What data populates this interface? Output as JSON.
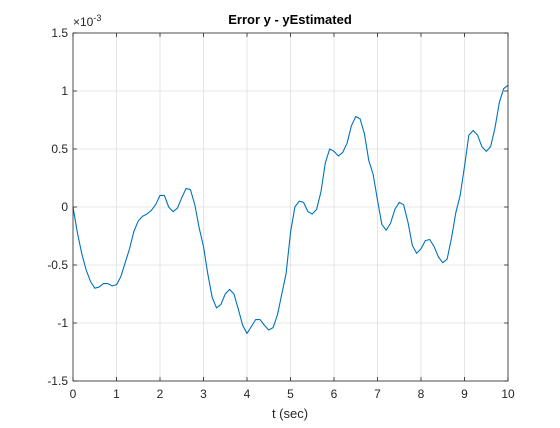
{
  "chart_data": {
    "type": "line",
    "title": "Error y - yEstimated",
    "xlabel": "t (sec)",
    "ylabel": "",
    "xlim": [
      0,
      10
    ],
    "ylim": [
      -0.0015,
      0.0015
    ],
    "y_exponent_label": "×10",
    "y_exponent_value": "-3",
    "xticks": [
      0,
      1,
      2,
      3,
      4,
      5,
      6,
      7,
      8,
      9,
      10
    ],
    "xtick_labels": [
      "0",
      "1",
      "2",
      "3",
      "4",
      "5",
      "6",
      "7",
      "8",
      "9",
      "10"
    ],
    "yticks": [
      -1.5,
      -1,
      -0.5,
      0,
      0.5,
      1,
      1.5
    ],
    "ytick_labels": [
      "-1.5",
      "-1",
      "-0.5",
      "0",
      "0.5",
      "1",
      "1.5"
    ],
    "y_tick_scale": 0.001,
    "grid": true,
    "series": [
      {
        "color": "#0072BD",
        "x": [
          0,
          0.1,
          0.2,
          0.3,
          0.4,
          0.5,
          0.6,
          0.7,
          0.8,
          0.9,
          1.0,
          1.1,
          1.2,
          1.3,
          1.4,
          1.5,
          1.6,
          1.7,
          1.8,
          1.9,
          2.0,
          2.1,
          2.2,
          2.3,
          2.4,
          2.5,
          2.6,
          2.7,
          2.8,
          2.9,
          3.0,
          3.1,
          3.2,
          3.3,
          3.4,
          3.5,
          3.6,
          3.7,
          3.8,
          3.9,
          4.0,
          4.1,
          4.2,
          4.3,
          4.4,
          4.5,
          4.6,
          4.7,
          4.8,
          4.9,
          5.0,
          5.1,
          5.2,
          5.3,
          5.4,
          5.5,
          5.6,
          5.7,
          5.8,
          5.9,
          6.0,
          6.1,
          6.2,
          6.3,
          6.4,
          6.5,
          6.6,
          6.7,
          6.8,
          6.9,
          7.0,
          7.1,
          7.2,
          7.3,
          7.4,
          7.5,
          7.6,
          7.7,
          7.8,
          7.9,
          8.0,
          8.1,
          8.2,
          8.3,
          8.4,
          8.5,
          8.6,
          8.7,
          8.8,
          8.9,
          9.0,
          9.1,
          9.2,
          9.3,
          9.4,
          9.5,
          9.6,
          9.7,
          9.8,
          9.9,
          10.0
        ],
        "y": [
          0.0,
          -0.00022,
          -0.0004,
          -0.00054,
          -0.00064,
          -0.0007,
          -0.00069,
          -0.00066,
          -0.00066,
          -0.00068,
          -0.00067,
          -0.0006,
          -0.00048,
          -0.00036,
          -0.00021,
          -0.00012,
          -8e-05,
          -6e-05,
          -3e-05,
          2e-05,
          0.0001,
          0.0001,
          0.0,
          -4e-05,
          -1e-05,
          8e-05,
          0.00016,
          0.00015,
          2e-05,
          -0.00018,
          -0.00034,
          -0.00058,
          -0.00078,
          -0.00087,
          -0.00084,
          -0.00075,
          -0.00071,
          -0.00075,
          -0.00088,
          -0.00102,
          -0.00109,
          -0.00103,
          -0.00097,
          -0.00097,
          -0.00102,
          -0.00106,
          -0.00104,
          -0.00093,
          -0.00075,
          -0.00057,
          -0.00022,
          0.0,
          5e-05,
          4e-05,
          -4e-05,
          -6e-05,
          -2e-05,
          0.00013,
          0.00038,
          0.0005,
          0.00048,
          0.00044,
          0.00047,
          0.00055,
          0.0007,
          0.00078,
          0.00076,
          0.00063,
          0.0004,
          0.00028,
          6e-05,
          -0.00015,
          -0.0002,
          -0.00014,
          -2e-05,
          4e-05,
          2e-05,
          -0.00013,
          -0.00033,
          -0.0004,
          -0.00036,
          -0.00029,
          -0.00028,
          -0.00034,
          -0.00043,
          -0.00048,
          -0.00045,
          -0.00027,
          -5e-05,
          0.0001,
          0.00035,
          0.00062,
          0.00066,
          0.00062,
          0.00052,
          0.00048,
          0.00052,
          0.00068,
          0.0009,
          0.00102,
          0.00105
        ]
      }
    ]
  }
}
